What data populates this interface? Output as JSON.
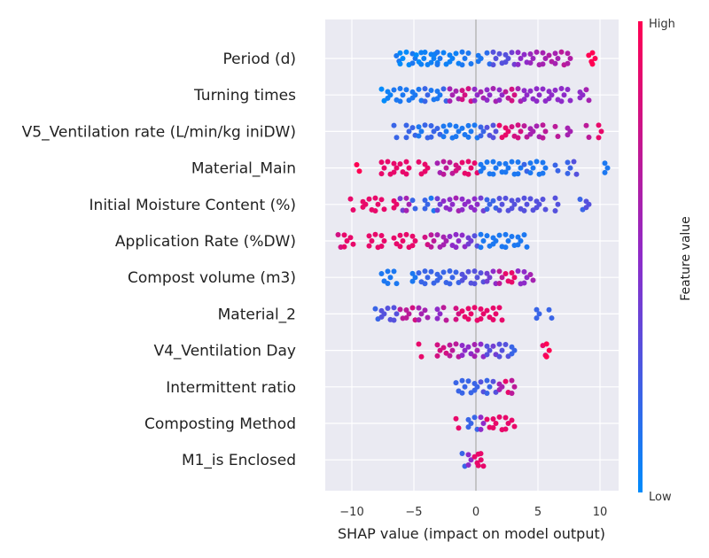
{
  "chart_data": {
    "type": "scatter",
    "title": "",
    "xlabel": "SHAP value (impact on model output)",
    "xlim": [
      -12,
      11.5
    ],
    "x_ticks": [
      -10,
      -5,
      0,
      5,
      10
    ],
    "x_tick_labels": [
      "−10",
      "−5",
      "0",
      "5",
      "10"
    ],
    "grid": true,
    "colorbar": {
      "title": "Feature value",
      "high_label": "High",
      "low_label": "Low",
      "low_color": "#008bfb",
      "high_color": "#ff0052"
    },
    "features": [
      {
        "name": "Period (d)",
        "points": [
          [
            -6.3,
            0.1
          ],
          [
            -6.0,
            0.0
          ],
          [
            -5.5,
            0.0
          ],
          [
            -5.0,
            0.1
          ],
          [
            -4.7,
            0.0
          ],
          [
            -4.3,
            0.05
          ],
          [
            -4.0,
            0.05
          ],
          [
            -3.5,
            0.05
          ],
          [
            -3.2,
            0.05
          ],
          [
            -3.0,
            0.1
          ],
          [
            -2.5,
            0.05
          ],
          [
            -2.0,
            0.05
          ],
          [
            -1.5,
            0.05
          ],
          [
            -1.0,
            0.1
          ],
          [
            -0.5,
            0.1
          ],
          [
            0.3,
            0.1
          ],
          [
            1.0,
            0.15
          ],
          [
            1.5,
            0.3
          ],
          [
            2.0,
            0.3
          ],
          [
            2.5,
            0.3
          ],
          [
            3.0,
            0.4
          ],
          [
            3.5,
            0.5
          ],
          [
            4.0,
            0.5
          ],
          [
            4.5,
            0.55
          ],
          [
            5.0,
            0.6
          ],
          [
            5.5,
            0.6
          ],
          [
            6.0,
            0.65
          ],
          [
            6.5,
            0.6
          ],
          [
            7.0,
            0.7
          ],
          [
            7.5,
            0.65
          ],
          [
            9.2,
            1.0
          ],
          [
            9.5,
            1.0
          ]
        ]
      },
      {
        "name": "Turning times",
        "points": [
          [
            -7.5,
            0.0
          ],
          [
            -7.0,
            0.05
          ],
          [
            -6.5,
            0.1
          ],
          [
            -6.0,
            0.1
          ],
          [
            -5.5,
            0.1
          ],
          [
            -5.0,
            0.1
          ],
          [
            -4.5,
            0.1
          ],
          [
            -4.0,
            0.2
          ],
          [
            -3.5,
            0.1
          ],
          [
            -3.0,
            0.1
          ],
          [
            -2.5,
            0.2
          ],
          [
            -2.0,
            0.6
          ],
          [
            -1.5,
            0.6
          ],
          [
            -1.0,
            0.8
          ],
          [
            -0.5,
            0.8
          ],
          [
            0.0,
            0.5
          ],
          [
            0.5,
            0.6
          ],
          [
            1.0,
            0.5
          ],
          [
            1.5,
            0.6
          ],
          [
            2.0,
            0.5
          ],
          [
            2.5,
            0.7
          ],
          [
            3.0,
            0.8
          ],
          [
            3.5,
            0.6
          ],
          [
            4.0,
            0.5
          ],
          [
            4.5,
            0.5
          ],
          [
            5.0,
            0.5
          ],
          [
            5.5,
            0.5
          ],
          [
            6.0,
            0.5
          ],
          [
            6.5,
            0.5
          ],
          [
            7.0,
            0.5
          ],
          [
            7.5,
            0.5
          ],
          [
            8.5,
            0.5
          ],
          [
            9.0,
            0.6
          ]
        ]
      },
      {
        "name": "V5_Ventilation rate (L/min/kg iniDW)",
        "points": [
          [
            -6.5,
            0.2
          ],
          [
            -5.5,
            0.2
          ],
          [
            -5.0,
            0.2
          ],
          [
            -4.5,
            0.1
          ],
          [
            -4.0,
            0.2
          ],
          [
            -3.5,
            0.2
          ],
          [
            -3.0,
            0.2
          ],
          [
            -2.5,
            0.1
          ],
          [
            -2.0,
            0.1
          ],
          [
            -1.5,
            0.1
          ],
          [
            -1.0,
            0.1
          ],
          [
            -0.5,
            0.1
          ],
          [
            0.0,
            0.1
          ],
          [
            0.5,
            0.2
          ],
          [
            1.0,
            0.3
          ],
          [
            1.5,
            0.3
          ],
          [
            2.0,
            0.9
          ],
          [
            2.5,
            0.9
          ],
          [
            3.0,
            0.8
          ],
          [
            3.5,
            0.8
          ],
          [
            4.0,
            0.7
          ],
          [
            4.5,
            0.6
          ],
          [
            5.0,
            0.6
          ],
          [
            5.5,
            0.7
          ],
          [
            6.5,
            0.7
          ],
          [
            7.5,
            0.6
          ],
          [
            9.0,
            0.7
          ],
          [
            10.0,
            0.9
          ]
        ]
      },
      {
        "name": "Material_Main",
        "points": [
          [
            -9.5,
            1.0
          ],
          [
            -7.5,
            0.9
          ],
          [
            -7.0,
            0.9
          ],
          [
            -6.5,
            0.9
          ],
          [
            -6.0,
            0.9
          ],
          [
            -5.5,
            0.9
          ],
          [
            -4.5,
            0.9
          ],
          [
            -4.0,
            0.9
          ],
          [
            -3.0,
            0.6
          ],
          [
            -2.5,
            0.7
          ],
          [
            -2.0,
            0.7
          ],
          [
            -1.5,
            0.8
          ],
          [
            -1.0,
            0.9
          ],
          [
            -0.5,
            0.9
          ],
          [
            0.0,
            0.9
          ],
          [
            0.5,
            0.1
          ],
          [
            1.0,
            0.1
          ],
          [
            1.5,
            0.1
          ],
          [
            2.0,
            0.1
          ],
          [
            2.5,
            0.1
          ],
          [
            3.0,
            0.1
          ],
          [
            3.5,
            0.1
          ],
          [
            4.0,
            0.2
          ],
          [
            4.5,
            0.1
          ],
          [
            5.0,
            0.1
          ],
          [
            5.5,
            0.1
          ],
          [
            6.5,
            0.2
          ],
          [
            7.5,
            0.2
          ],
          [
            8.0,
            0.3
          ],
          [
            10.5,
            0.1
          ]
        ]
      },
      {
        "name": "Initial Moisture Content (%)",
        "points": [
          [
            -10.0,
            0.9
          ],
          [
            -9.0,
            0.9
          ],
          [
            -8.5,
            0.9
          ],
          [
            -8.0,
            0.9
          ],
          [
            -7.5,
            0.9
          ],
          [
            -6.5,
            0.9
          ],
          [
            -6.0,
            0.4
          ],
          [
            -5.5,
            0.6
          ],
          [
            -5.0,
            0.2
          ],
          [
            -4.0,
            0.2
          ],
          [
            -3.5,
            0.1
          ],
          [
            -3.0,
            0.4
          ],
          [
            -2.5,
            0.5
          ],
          [
            -2.0,
            0.5
          ],
          [
            -1.5,
            0.6
          ],
          [
            -1.0,
            0.5
          ],
          [
            -0.5,
            0.5
          ],
          [
            0.0,
            0.5
          ],
          [
            0.5,
            0.4
          ],
          [
            1.0,
            0.2
          ],
          [
            1.5,
            0.2
          ],
          [
            2.0,
            0.3
          ],
          [
            2.5,
            0.3
          ],
          [
            3.0,
            0.3
          ],
          [
            3.5,
            0.3
          ],
          [
            4.0,
            0.3
          ],
          [
            4.5,
            0.3
          ],
          [
            5.0,
            0.3
          ],
          [
            5.5,
            0.3
          ],
          [
            6.5,
            0.3
          ],
          [
            8.5,
            0.2
          ],
          [
            9.0,
            0.3
          ]
        ]
      },
      {
        "name": "Application Rate (%DW)",
        "points": [
          [
            -11.0,
            0.8
          ],
          [
            -10.5,
            0.9
          ],
          [
            -10.0,
            0.9
          ],
          [
            -8.5,
            0.9
          ],
          [
            -8.0,
            0.9
          ],
          [
            -7.5,
            0.9
          ],
          [
            -6.5,
            0.9
          ],
          [
            -6.0,
            0.9
          ],
          [
            -5.5,
            0.9
          ],
          [
            -5.0,
            0.9
          ],
          [
            -4.0,
            0.8
          ],
          [
            -3.5,
            0.7
          ],
          [
            -3.0,
            0.6
          ],
          [
            -2.5,
            0.6
          ],
          [
            -2.0,
            0.5
          ],
          [
            -1.5,
            0.5
          ],
          [
            -1.0,
            0.5
          ],
          [
            -0.5,
            0.4
          ],
          [
            0.0,
            0.3
          ],
          [
            0.5,
            0.1
          ],
          [
            1.0,
            0.1
          ],
          [
            1.5,
            0.1
          ],
          [
            2.0,
            0.1
          ],
          [
            2.5,
            0.1
          ],
          [
            3.0,
            0.1
          ],
          [
            3.5,
            0.1
          ],
          [
            4.0,
            0.1
          ]
        ]
      },
      {
        "name": "Compost volume (m3)",
        "points": [
          [
            -7.5,
            0.1
          ],
          [
            -7.0,
            0.1
          ],
          [
            -6.5,
            0.1
          ],
          [
            -5.0,
            0.1
          ],
          [
            -4.5,
            0.2
          ],
          [
            -4.0,
            0.2
          ],
          [
            -3.5,
            0.2
          ],
          [
            -3.0,
            0.2
          ],
          [
            -2.5,
            0.2
          ],
          [
            -2.0,
            0.2
          ],
          [
            -1.5,
            0.2
          ],
          [
            -1.0,
            0.3
          ],
          [
            -0.5,
            0.3
          ],
          [
            0.0,
            0.3
          ],
          [
            0.5,
            0.3
          ],
          [
            1.0,
            0.4
          ],
          [
            1.5,
            0.5
          ],
          [
            2.0,
            0.7
          ],
          [
            2.5,
            0.9
          ],
          [
            3.0,
            0.9
          ],
          [
            3.5,
            0.5
          ],
          [
            4.0,
            0.5
          ],
          [
            4.5,
            0.6
          ]
        ]
      },
      {
        "name": "Material_2",
        "points": [
          [
            -8.0,
            0.2
          ],
          [
            -7.5,
            0.3
          ],
          [
            -7.0,
            0.3
          ],
          [
            -6.5,
            0.3
          ],
          [
            -6.0,
            0.7
          ],
          [
            -5.5,
            0.7
          ],
          [
            -5.0,
            0.8
          ],
          [
            -4.5,
            0.6
          ],
          [
            -4.0,
            0.6
          ],
          [
            -3.0,
            0.5
          ],
          [
            -2.5,
            0.7
          ],
          [
            -1.5,
            0.8
          ],
          [
            -1.0,
            0.9
          ],
          [
            -0.5,
            0.9
          ],
          [
            0.0,
            0.9
          ],
          [
            0.5,
            0.9
          ],
          [
            1.0,
            0.9
          ],
          [
            1.5,
            0.9
          ],
          [
            2.0,
            0.9
          ],
          [
            5.0,
            0.2
          ],
          [
            6.0,
            0.2
          ]
        ]
      },
      {
        "name": "V4_Ventilation Day",
        "points": [
          [
            -4.5,
            0.9
          ],
          [
            -3.0,
            0.8
          ],
          [
            -2.5,
            0.8
          ],
          [
            -2.0,
            0.7
          ],
          [
            -1.5,
            0.7
          ],
          [
            -1.0,
            0.5
          ],
          [
            -0.5,
            0.5
          ],
          [
            0.0,
            0.6
          ],
          [
            0.5,
            0.5
          ],
          [
            1.0,
            0.3
          ],
          [
            1.5,
            0.4
          ],
          [
            2.0,
            0.3
          ],
          [
            2.5,
            0.3
          ],
          [
            3.0,
            0.2
          ],
          [
            5.5,
            0.9
          ],
          [
            5.8,
            1.0
          ]
        ]
      },
      {
        "name": "Intermittent ratio",
        "points": [
          [
            -1.5,
            0.2
          ],
          [
            -1.0,
            0.2
          ],
          [
            -0.5,
            0.2
          ],
          [
            0.0,
            0.2
          ],
          [
            0.5,
            0.3
          ],
          [
            1.0,
            0.2
          ],
          [
            1.5,
            0.3
          ],
          [
            2.0,
            0.6
          ],
          [
            2.5,
            0.9
          ],
          [
            3.0,
            0.7
          ]
        ]
      },
      {
        "name": "Composting Method",
        "points": [
          [
            -1.5,
            0.9
          ],
          [
            -0.5,
            0.2
          ],
          [
            0.0,
            0.2
          ],
          [
            0.5,
            0.5
          ],
          [
            1.0,
            0.9
          ],
          [
            1.5,
            0.9
          ],
          [
            2.0,
            0.9
          ],
          [
            2.5,
            0.9
          ],
          [
            3.0,
            0.9
          ]
        ]
      },
      {
        "name": "M1_is Enclosed",
        "points": [
          [
            -1.0,
            0.2
          ],
          [
            -0.5,
            0.5
          ],
          [
            0.0,
            0.9
          ],
          [
            0.3,
            0.9
          ],
          [
            0.5,
            0.9
          ]
        ]
      }
    ]
  }
}
